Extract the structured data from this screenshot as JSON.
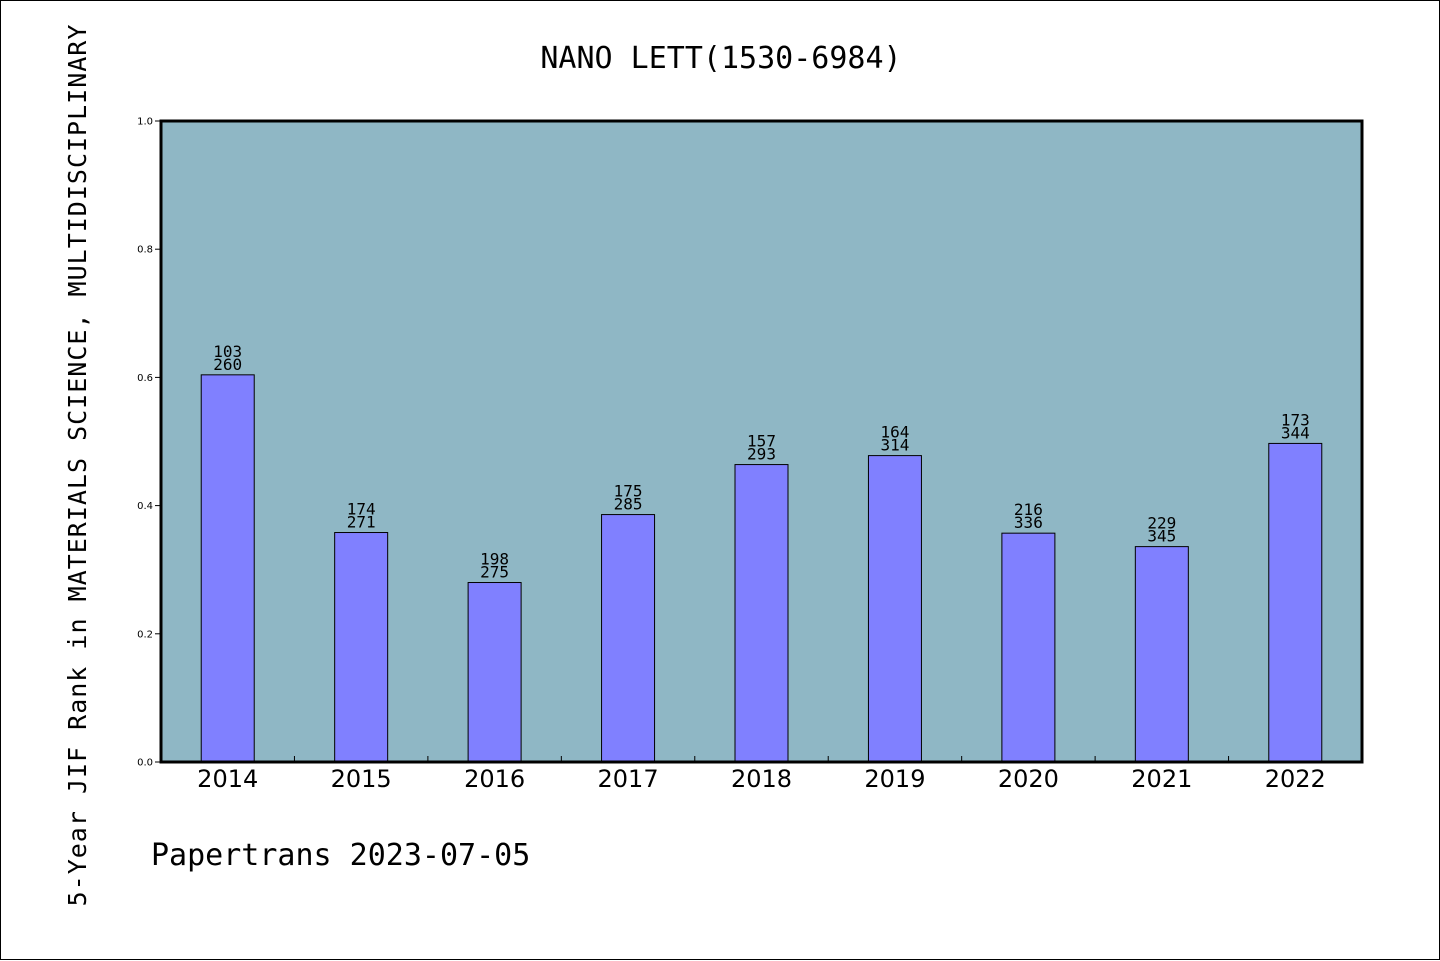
{
  "chart_data": {
    "type": "bar",
    "title": "NANO LETT(1530-6984)",
    "ylabel": "5-Year JIF Rank in MATERIALS SCIENCE, MULTIDISCIPLINARY",
    "xlabel": "",
    "ylim": [
      0,
      1.0
    ],
    "yticks": [
      "0.0",
      "0.2",
      "0.4",
      "0.6",
      "0.8",
      "1.0"
    ],
    "categories": [
      "2014",
      "2015",
      "2016",
      "2017",
      "2018",
      "2019",
      "2020",
      "2021",
      "2022"
    ],
    "values": [
      0.604,
      0.358,
      0.28,
      0.386,
      0.464,
      0.478,
      0.357,
      0.336,
      0.497
    ],
    "rank_labels": [
      "103",
      "174",
      "198",
      "175",
      "157",
      "164",
      "216",
      "229",
      "173"
    ],
    "total_labels": [
      "260",
      "271",
      "275",
      "285",
      "293",
      "314",
      "336",
      "345",
      "344"
    ],
    "grid": false,
    "colors": {
      "plot_background": "#8fb7c5",
      "bar_fill": "#8080ff",
      "bar_stroke": "#000000",
      "axis": "#000000"
    }
  },
  "footer": {
    "text": "Papertrans 2023-07-05"
  }
}
